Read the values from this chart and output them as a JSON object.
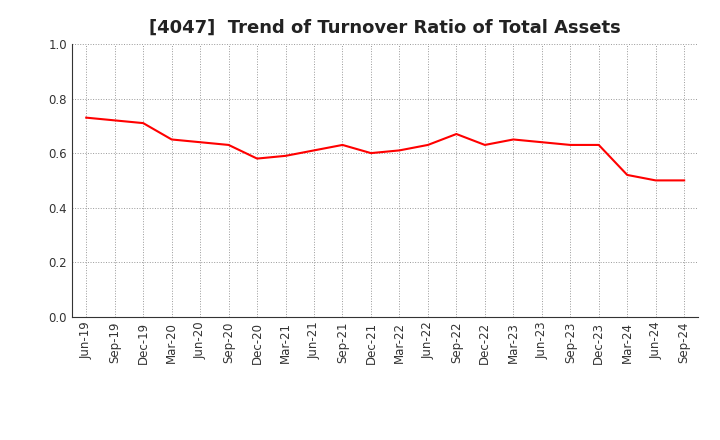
{
  "title": "[4047]  Trend of Turnover Ratio of Total Assets",
  "x_labels": [
    "Jun-19",
    "Sep-19",
    "Dec-19",
    "Mar-20",
    "Jun-20",
    "Sep-20",
    "Dec-20",
    "Mar-21",
    "Jun-21",
    "Sep-21",
    "Dec-21",
    "Mar-22",
    "Jun-22",
    "Sep-22",
    "Dec-22",
    "Mar-23",
    "Jun-23",
    "Sep-23",
    "Dec-23",
    "Mar-24",
    "Jun-24",
    "Sep-24"
  ],
  "y_values": [
    0.73,
    0.72,
    0.71,
    0.65,
    0.64,
    0.63,
    0.58,
    0.59,
    0.61,
    0.63,
    0.6,
    0.61,
    0.63,
    0.67,
    0.63,
    0.65,
    0.64,
    0.63,
    0.63,
    0.52,
    0.5,
    0.5
  ],
  "line_color": "#FF0000",
  "line_width": 1.5,
  "ylim": [
    0.0,
    1.0
  ],
  "yticks": [
    0.0,
    0.2,
    0.4,
    0.6,
    0.8,
    1.0
  ],
  "background_color": "#FFFFFF",
  "plot_bg_color": "#FFFFFF",
  "grid_color": "#999999",
  "title_fontsize": 13,
  "tick_fontsize": 8.5
}
